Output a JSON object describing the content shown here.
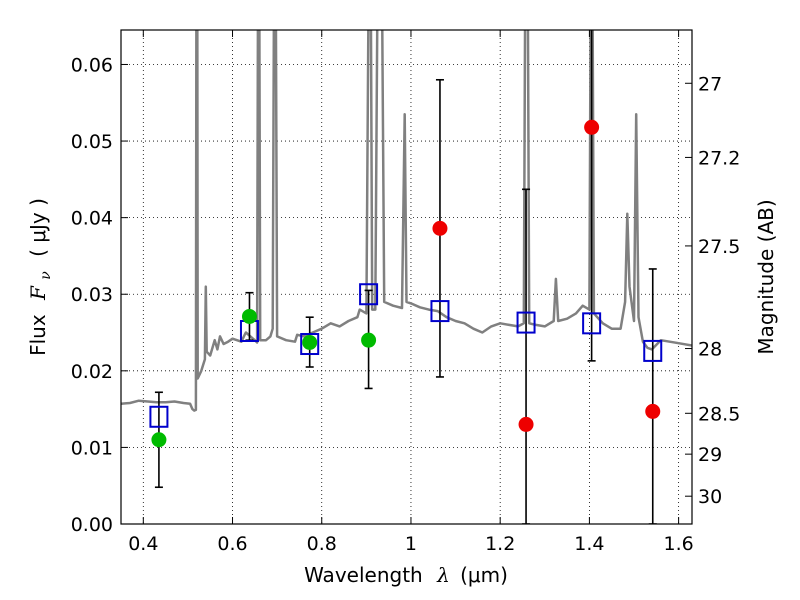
{
  "chart_data": {
    "type": "scatter",
    "title": "",
    "xlabel_text": "Wavelength",
    "xlabel_symbol": "λ",
    "xlabel_unit": "(μm)",
    "ylabel_text": "Flux",
    "ylabel_symbol": "F",
    "ylabel_subscript": "ν",
    "ylabel_unit": "( μJy )",
    "y2label": "Magnitude (AB)",
    "xlim": [
      0.35,
      1.63
    ],
    "ylim": [
      0.0,
      0.0645
    ],
    "grid": true,
    "x_ticks": [
      {
        "value": 0.4,
        "label": "0.4"
      },
      {
        "value": 0.6,
        "label": "0.6"
      },
      {
        "value": 0.8,
        "label": "0.8"
      },
      {
        "value": 1.0,
        "label": "1"
      },
      {
        "value": 1.2,
        "label": "1.2"
      },
      {
        "value": 1.4,
        "label": "1.4"
      },
      {
        "value": 1.6,
        "label": "1.6"
      }
    ],
    "y_ticks": [
      {
        "value": 0.0,
        "label": "0.00"
      },
      {
        "value": 0.01,
        "label": "0.01"
      },
      {
        "value": 0.02,
        "label": "0.02"
      },
      {
        "value": 0.03,
        "label": "0.03"
      },
      {
        "value": 0.04,
        "label": "0.04"
      },
      {
        "value": 0.05,
        "label": "0.05"
      },
      {
        "value": 0.06,
        "label": "0.06"
      }
    ],
    "y2_ticks": [
      {
        "value": 27.0,
        "label": "27"
      },
      {
        "value": 27.2,
        "label": "27.2"
      },
      {
        "value": 27.5,
        "label": "27.5"
      },
      {
        "value": 28.0,
        "label": "28"
      },
      {
        "value": 28.5,
        "label": "28.5"
      },
      {
        "value": 29.0,
        "label": "29"
      },
      {
        "value": 30.0,
        "label": "30"
      }
    ],
    "spectrum": {
      "color": "#808080",
      "points": [
        [
          0.35,
          0.0157
        ],
        [
          0.37,
          0.0158
        ],
        [
          0.39,
          0.0161
        ],
        [
          0.41,
          0.016
        ],
        [
          0.43,
          0.0159
        ],
        [
          0.45,
          0.0159
        ],
        [
          0.47,
          0.016
        ],
        [
          0.49,
          0.0158
        ],
        [
          0.505,
          0.0157
        ],
        [
          0.51,
          0.015
        ],
        [
          0.514,
          0.0148
        ],
        [
          0.518,
          0.0149
        ],
        [
          0.519,
          0.07
        ],
        [
          0.521,
          0.07
        ],
        [
          0.522,
          0.019
        ],
        [
          0.53,
          0.02
        ],
        [
          0.538,
          0.0215
        ],
        [
          0.54,
          0.031
        ],
        [
          0.542,
          0.0225
        ],
        [
          0.55,
          0.022
        ],
        [
          0.56,
          0.024
        ],
        [
          0.566,
          0.0228
        ],
        [
          0.572,
          0.0245
        ],
        [
          0.58,
          0.0235
        ],
        [
          0.59,
          0.0238
        ],
        [
          0.6,
          0.0242
        ],
        [
          0.61,
          0.024
        ],
        [
          0.62,
          0.0238
        ],
        [
          0.628,
          0.0248
        ],
        [
          0.63,
          0.025
        ],
        [
          0.64,
          0.0245
        ],
        [
          0.65,
          0.024
        ],
        [
          0.655,
          0.0237
        ],
        [
          0.657,
          0.07
        ],
        [
          0.66,
          0.07
        ],
        [
          0.662,
          0.024
        ],
        [
          0.675,
          0.024
        ],
        [
          0.685,
          0.0245
        ],
        [
          0.69,
          0.0255
        ],
        [
          0.693,
          0.07
        ],
        [
          0.697,
          0.07
        ],
        [
          0.7,
          0.0245
        ],
        [
          0.72,
          0.024
        ],
        [
          0.74,
          0.0238
        ],
        [
          0.745,
          0.0247
        ],
        [
          0.76,
          0.0245
        ],
        [
          0.78,
          0.025
        ],
        [
          0.8,
          0.0255
        ],
        [
          0.82,
          0.0262
        ],
        [
          0.84,
          0.0258
        ],
        [
          0.86,
          0.0265
        ],
        [
          0.88,
          0.027
        ],
        [
          0.885,
          0.028
        ],
        [
          0.9,
          0.0275
        ],
        [
          0.905,
          0.07
        ],
        [
          0.91,
          0.07
        ],
        [
          0.913,
          0.028
        ],
        [
          0.92,
          0.028
        ],
        [
          0.925,
          0.07
        ],
        [
          0.935,
          0.07
        ],
        [
          0.94,
          0.029
        ],
        [
          0.96,
          0.0285
        ],
        [
          0.98,
          0.0282
        ],
        [
          0.986,
          0.0535
        ],
        [
          0.99,
          0.029
        ],
        [
          1.0,
          0.0288
        ],
        [
          1.02,
          0.0283
        ],
        [
          1.04,
          0.028
        ],
        [
          1.06,
          0.0278
        ],
        [
          1.08,
          0.027
        ],
        [
          1.1,
          0.0265
        ],
        [
          1.12,
          0.0262
        ],
        [
          1.14,
          0.0255
        ],
        [
          1.16,
          0.025
        ],
        [
          1.18,
          0.0258
        ],
        [
          1.2,
          0.0262
        ],
        [
          1.22,
          0.026
        ],
        [
          1.24,
          0.0258
        ],
        [
          1.253,
          0.0262
        ],
        [
          1.256,
          0.07
        ],
        [
          1.262,
          0.07
        ],
        [
          1.265,
          0.0262
        ],
        [
          1.28,
          0.026
        ],
        [
          1.3,
          0.0258
        ],
        [
          1.32,
          0.0265
        ],
        [
          1.325,
          0.032
        ],
        [
          1.33,
          0.0265
        ],
        [
          1.35,
          0.0268
        ],
        [
          1.37,
          0.0275
        ],
        [
          1.385,
          0.0285
        ],
        [
          1.4,
          0.028
        ],
        [
          1.403,
          0.07
        ],
        [
          1.407,
          0.07
        ],
        [
          1.41,
          0.0275
        ],
        [
          1.43,
          0.0262
        ],
        [
          1.45,
          0.0255
        ],
        [
          1.47,
          0.0255
        ],
        [
          1.48,
          0.029
        ],
        [
          1.485,
          0.0405
        ],
        [
          1.49,
          0.031
        ],
        [
          1.5,
          0.0265
        ],
        [
          1.505,
          0.0535
        ],
        [
          1.51,
          0.027
        ],
        [
          1.52,
          0.0238
        ],
        [
          1.53,
          0.023
        ],
        [
          1.54,
          0.0228
        ],
        [
          1.56,
          0.024
        ],
        [
          1.58,
          0.0238
        ],
        [
          1.6,
          0.0236
        ],
        [
          1.63,
          0.0233
        ]
      ]
    },
    "series": [
      {
        "marker": "hollow-square",
        "color": "#0000cc",
        "points": [
          {
            "x": 0.435,
            "y": 0.014
          },
          {
            "x": 0.638,
            "y": 0.0252
          },
          {
            "x": 0.773,
            "y": 0.0235
          },
          {
            "x": 0.905,
            "y": 0.03
          },
          {
            "x": 1.065,
            "y": 0.0278
          },
          {
            "x": 1.258,
            "y": 0.0263
          },
          {
            "x": 1.405,
            "y": 0.0262
          },
          {
            "x": 1.542,
            "y": 0.0226
          }
        ]
      },
      {
        "marker": "filled-circle",
        "color": "#00bb00",
        "points": [
          {
            "x": 0.435,
            "y": 0.011,
            "err_low": 0.0048,
            "err_high": 0.0172
          },
          {
            "x": 0.638,
            "y": 0.0271,
            "err_low": 0.024,
            "err_high": 0.0302
          },
          {
            "x": 0.773,
            "y": 0.0237,
            "err_low": 0.0205,
            "err_high": 0.027
          },
          {
            "x": 0.905,
            "y": 0.024,
            "err_low": 0.0177,
            "err_high": 0.0305
          }
        ]
      },
      {
        "marker": "filled-circle",
        "color": "#ee0000",
        "points": [
          {
            "x": 1.065,
            "y": 0.0386,
            "err_low": 0.0192,
            "err_high": 0.058
          },
          {
            "x": 1.258,
            "y": 0.013,
            "err_low": 0.0,
            "err_high": 0.0437
          },
          {
            "x": 1.405,
            "y": 0.0518,
            "err_low": 0.0213,
            "err_high": 0.07
          },
          {
            "x": 1.542,
            "y": 0.0147,
            "err_low": 0.0,
            "err_high": 0.0333
          }
        ]
      }
    ]
  }
}
